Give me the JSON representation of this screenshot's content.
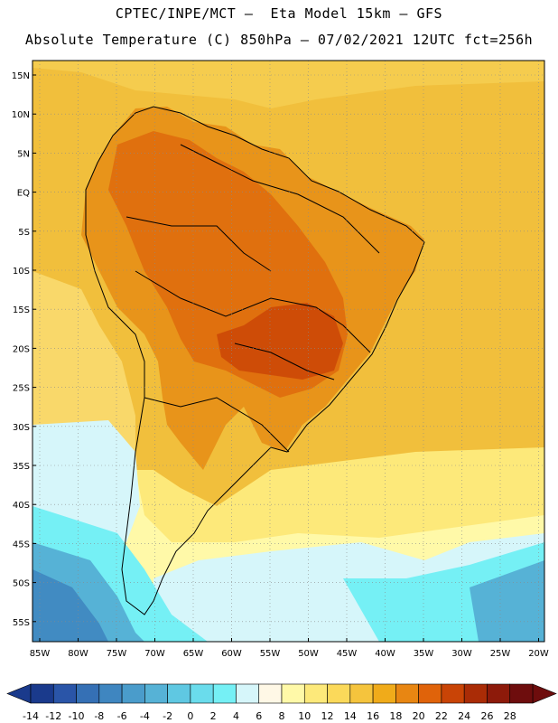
{
  "header": {
    "line1": "CPTEC/INPE/MCT –  Eta Model 15km – GFS",
    "line2": "Absolute Temperature (C) 850hPa – 07/02/2021 12UTC fct=256h"
  },
  "axes": {
    "lat_labels": [
      "15N",
      "10N",
      "5N",
      "EQ",
      "5S",
      "10S",
      "15S",
      "20S",
      "25S",
      "30S",
      "35S",
      "40S",
      "45S",
      "50S",
      "55S"
    ],
    "lon_labels": [
      "85W",
      "80W",
      "75W",
      "70W",
      "65W",
      "60W",
      "55W",
      "50W",
      "45W",
      "40W",
      "35W",
      "30W",
      "25W",
      "20W"
    ]
  },
  "colorbar": {
    "ticks": [
      "-14",
      "-12",
      "-10",
      "-8",
      "-6",
      "-4",
      "-2",
      "0",
      "2",
      "4",
      "6",
      "8",
      "10",
      "12",
      "14",
      "16",
      "18",
      "20",
      "22",
      "24",
      "26",
      "28"
    ],
    "colors": [
      "#1a3a8c",
      "#2a55a8",
      "#3570b5",
      "#3f86c0",
      "#4a9ccb",
      "#56b2d6",
      "#5fc8e2",
      "#6adcec",
      "#75f0f5",
      "#d6f6fa",
      "#fff8e6",
      "#fff9a8",
      "#fde97a",
      "#fbd95a",
      "#f5c43d",
      "#f0ab1a",
      "#e88612",
      "#e0630a",
      "#c94406",
      "#aa2c06",
      "#8d1a0a",
      "#6e0d0d"
    ]
  },
  "map": {
    "background_color": "#f1bf3c",
    "land_warm_color": "#e8941a",
    "land_hot_color": "#de6a0d",
    "south_cool_color": "#fde97a"
  }
}
